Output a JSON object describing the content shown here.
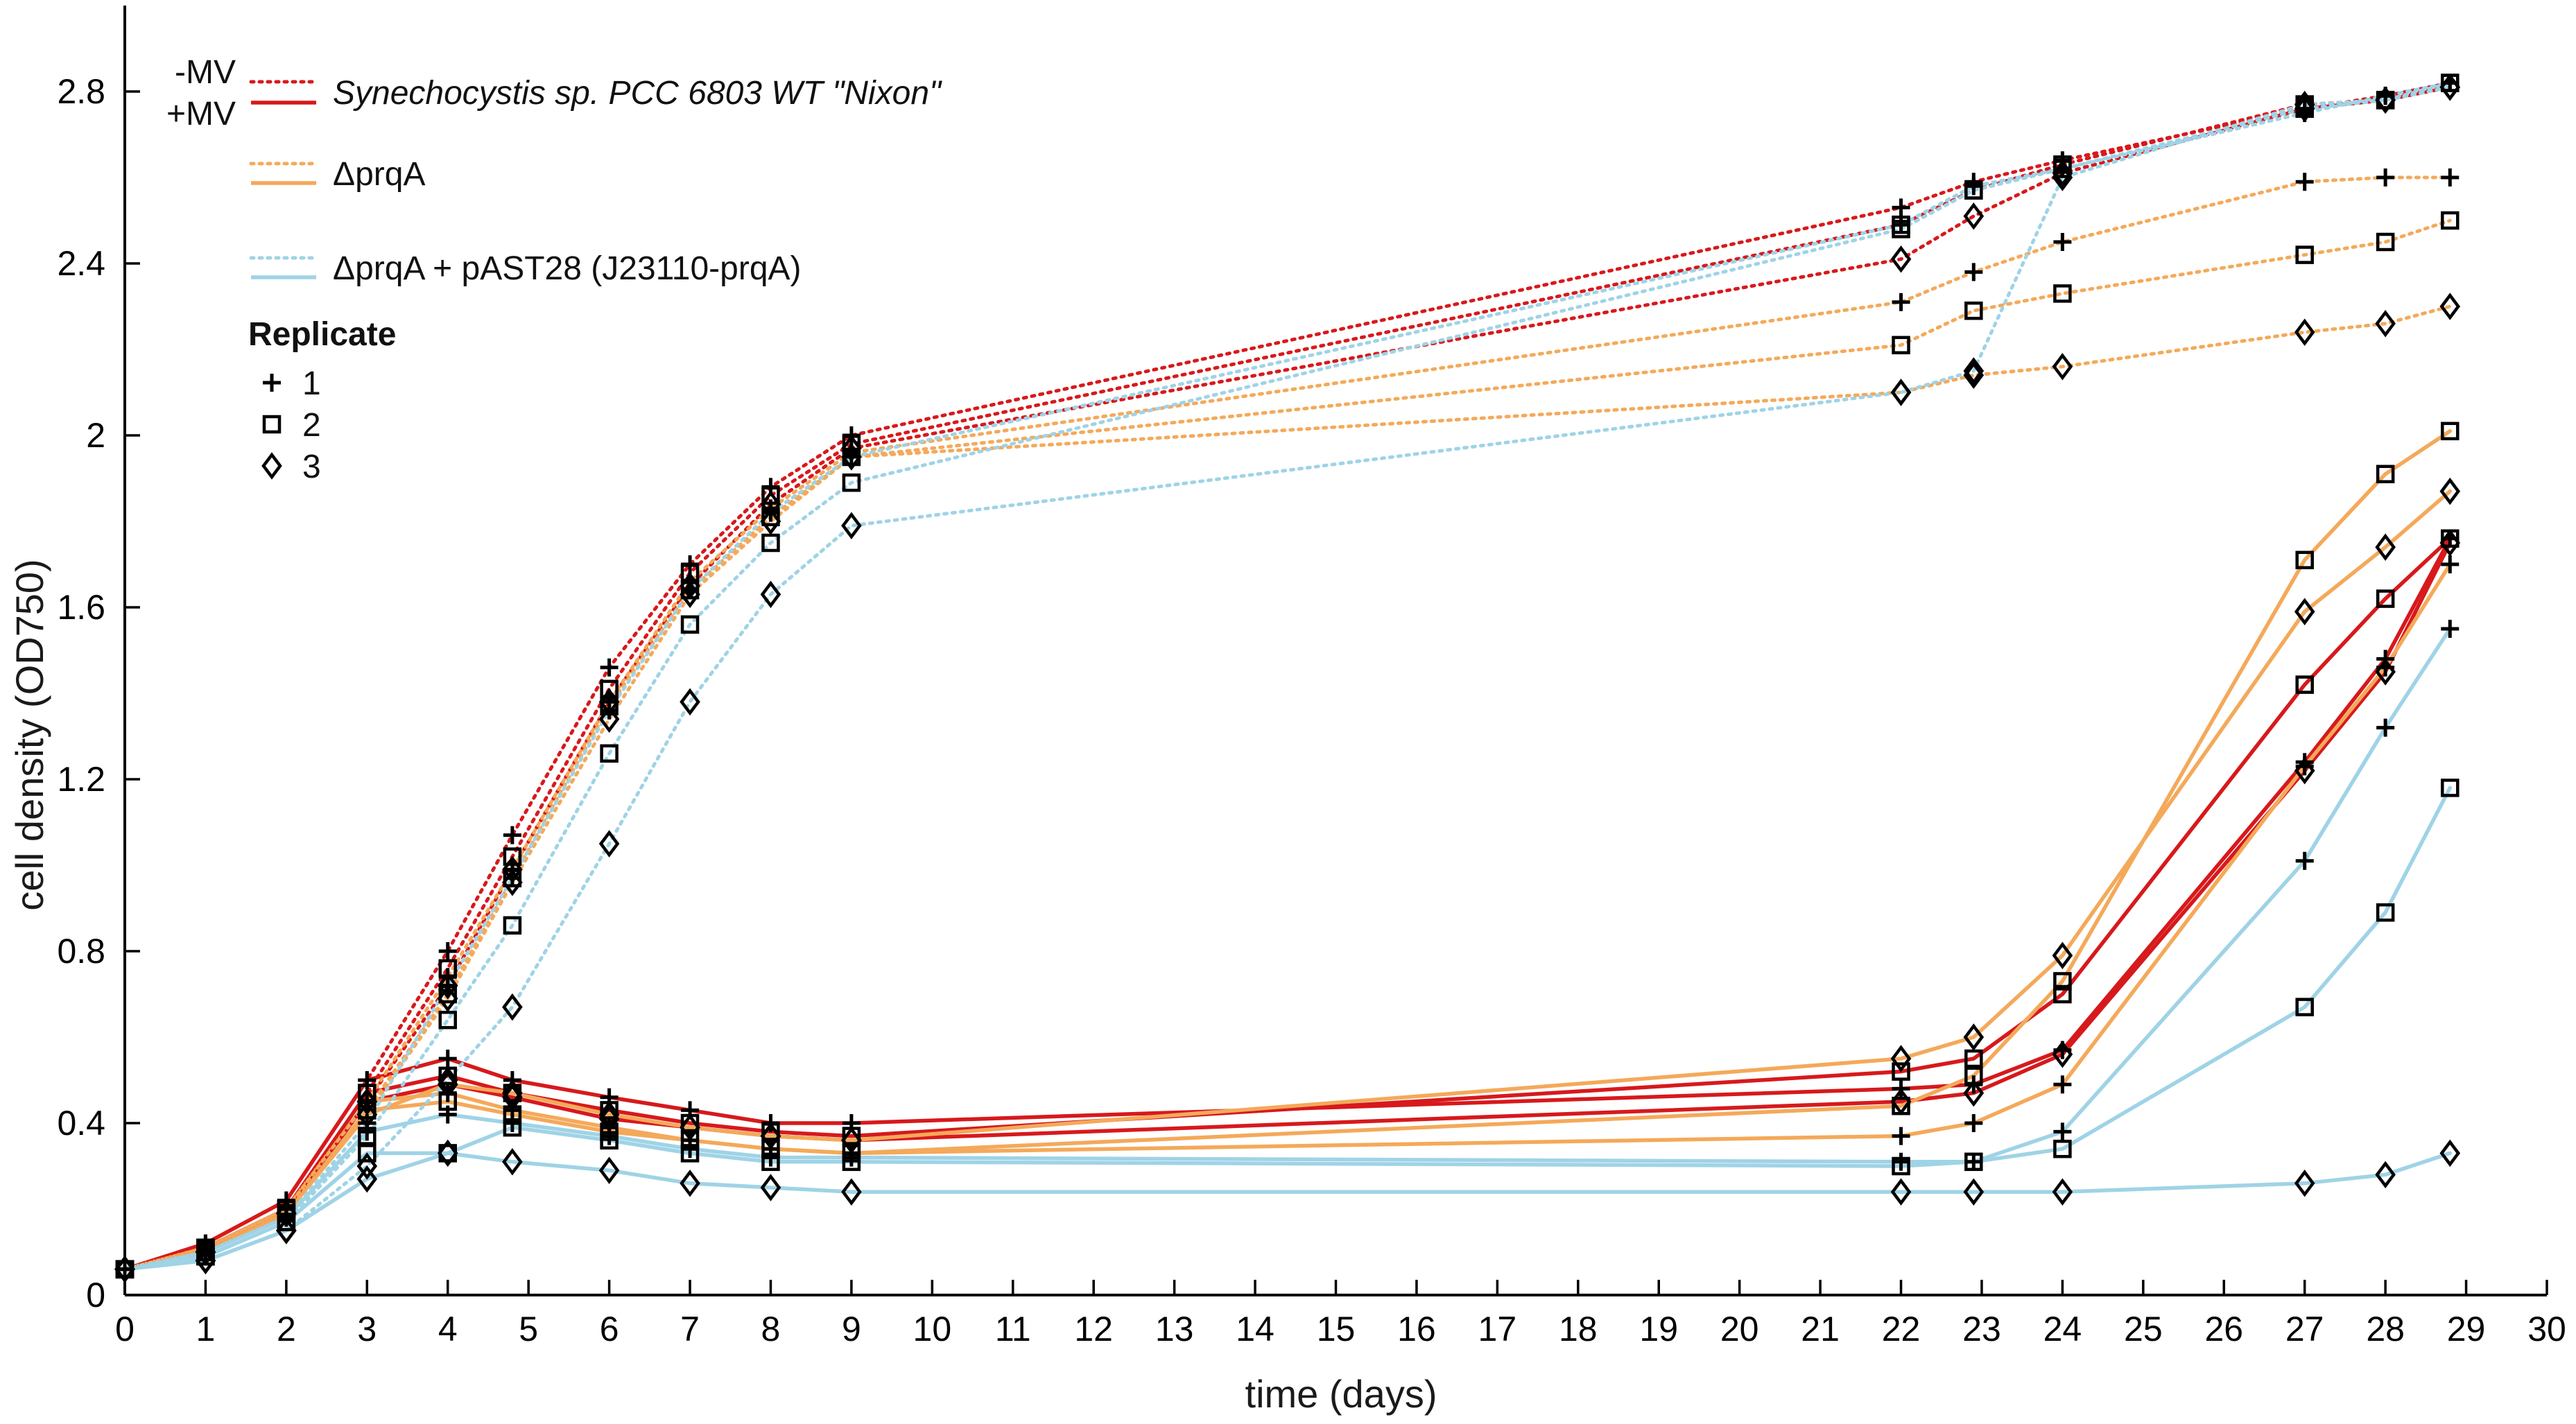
{
  "chart_data": {
    "type": "line",
    "title": "",
    "xlabel": "time (days)",
    "ylabel": "cell density (OD750)",
    "xlim": [
      0,
      30
    ],
    "ylim": [
      0,
      3.0
    ],
    "x_ticks": [
      "0",
      "1",
      "2",
      "3",
      "4",
      "5",
      "6",
      "7",
      "8",
      "9",
      "10",
      "11",
      "12",
      "13",
      "14",
      "15",
      "16",
      "17",
      "18",
      "19",
      "20",
      "21",
      "22",
      "23",
      "24",
      "25",
      "26",
      "27",
      "28",
      "29",
      "30"
    ],
    "y_ticks": [
      {
        "value": 0,
        "label": "0"
      },
      {
        "value": 0.4,
        "label": "0.4"
      },
      {
        "value": 0.8,
        "label": "0.8"
      },
      {
        "value": 1.2,
        "label": "1.2"
      },
      {
        "value": 1.6,
        "label": "1.6"
      },
      {
        "value": 2.0,
        "label": "2"
      },
      {
        "value": 2.4,
        "label": "2.4"
      },
      {
        "value": 2.8,
        "label": "2.8"
      }
    ],
    "grid": false,
    "legend": {
      "placement": "top-left",
      "mv_minus_label": "-MV",
      "mv_plus_label": "+MV",
      "strains": [
        {
          "label": "Synechocystis sp. PCC 6803 WT \"Nixon\"",
          "color": "#d7191c",
          "italic": true
        },
        {
          "label": "ΔprqA",
          "color": "#f4a95a",
          "italic": false
        },
        {
          "label": "ΔprqA + pAST28 (J23110-prqA)",
          "color": "#9fd3e6",
          "italic": false
        }
      ],
      "replicate_title": "Replicate",
      "replicates": [
        {
          "label": "1",
          "marker": "plus"
        },
        {
          "label": "2",
          "marker": "square"
        },
        {
          "label": "3",
          "marker": "diamond"
        }
      ]
    },
    "x": [
      0,
      1,
      2,
      3,
      4,
      4.8,
      6,
      7,
      8,
      9,
      22,
      22.9,
      24,
      27,
      28,
      28.8
    ],
    "series": [
      {
        "strain": "Synechocystis sp. PCC 6803 WT \"Nixon\"",
        "condition": "-MV",
        "replicate": "1",
        "values": [
          0.06,
          0.12,
          0.22,
          0.5,
          0.8,
          1.07,
          1.46,
          1.7,
          1.88,
          2.0,
          2.53,
          2.59,
          2.64,
          2.76,
          2.79,
          2.82
        ]
      },
      {
        "strain": "Synechocystis sp. PCC 6803 WT \"Nixon\"",
        "condition": "-MV",
        "replicate": "2",
        "values": [
          0.06,
          0.11,
          0.2,
          0.47,
          0.76,
          1.02,
          1.41,
          1.68,
          1.86,
          1.98,
          2.49,
          2.57,
          2.63,
          2.77,
          2.78,
          2.82
        ]
      },
      {
        "strain": "Synechocystis sp. PCC 6803 WT \"Nixon\"",
        "condition": "-MV",
        "replicate": "3",
        "values": [
          0.06,
          0.1,
          0.19,
          0.45,
          0.72,
          0.99,
          1.38,
          1.65,
          1.84,
          1.97,
          2.41,
          2.51,
          2.61,
          2.76,
          2.78,
          2.81
        ]
      },
      {
        "strain": "Synechocystis sp. PCC 6803 WT \"Nixon\"",
        "condition": "+MV",
        "replicate": "1",
        "values": [
          0.06,
          0.12,
          0.22,
          0.5,
          0.55,
          0.5,
          0.46,
          0.43,
          0.4,
          0.4,
          0.48,
          0.49,
          0.57,
          1.24,
          1.48,
          1.76
        ]
      },
      {
        "strain": "Synechocystis sp. PCC 6803 WT \"Nixon\"",
        "condition": "+MV",
        "replicate": "2",
        "values": [
          0.06,
          0.11,
          0.2,
          0.47,
          0.51,
          0.47,
          0.43,
          0.4,
          0.38,
          0.37,
          0.52,
          0.55,
          0.7,
          1.42,
          1.62,
          1.76
        ]
      },
      {
        "strain": "Synechocystis sp. PCC 6803 WT \"Nixon\"",
        "condition": "+MV",
        "replicate": "3",
        "values": [
          0.06,
          0.1,
          0.19,
          0.45,
          0.49,
          0.46,
          0.41,
          0.39,
          0.37,
          0.36,
          0.45,
          0.47,
          0.56,
          1.22,
          1.45,
          1.75
        ]
      },
      {
        "strain": "ΔprqA",
        "condition": "-MV",
        "replicate": "1",
        "values": [
          0.06,
          0.11,
          0.2,
          0.45,
          0.74,
          0.99,
          1.38,
          1.66,
          1.83,
          1.96,
          2.31,
          2.38,
          2.45,
          2.59,
          2.6,
          2.6
        ]
      },
      {
        "strain": "ΔprqA",
        "condition": "-MV",
        "replicate": "2",
        "values": [
          0.06,
          0.1,
          0.19,
          0.43,
          0.7,
          0.97,
          1.37,
          1.64,
          1.81,
          1.95,
          2.21,
          2.29,
          2.33,
          2.42,
          2.45,
          2.5
        ]
      },
      {
        "strain": "ΔprqA",
        "condition": "-MV",
        "replicate": "3",
        "values": [
          0.06,
          0.1,
          0.19,
          0.42,
          0.69,
          0.96,
          1.34,
          1.63,
          1.8,
          1.95,
          2.1,
          2.14,
          2.16,
          2.24,
          2.26,
          2.3
        ]
      },
      {
        "strain": "ΔprqA",
        "condition": "+MV",
        "replicate": "1",
        "values": [
          0.06,
          0.11,
          0.2,
          0.45,
          0.47,
          0.43,
          0.39,
          0.36,
          0.34,
          0.33,
          0.37,
          0.4,
          0.49,
          1.23,
          1.46,
          1.7
        ]
      },
      {
        "strain": "ΔprqA",
        "condition": "+MV",
        "replicate": "2",
        "values": [
          0.06,
          0.1,
          0.19,
          0.43,
          0.45,
          0.42,
          0.38,
          0.36,
          0.34,
          0.33,
          0.44,
          0.51,
          0.73,
          1.71,
          1.91,
          2.01
        ]
      },
      {
        "strain": "ΔprqA",
        "condition": "+MV",
        "replicate": "3",
        "values": [
          0.06,
          0.1,
          0.19,
          0.42,
          0.49,
          0.47,
          0.42,
          0.39,
          0.37,
          0.36,
          0.55,
          0.6,
          0.79,
          1.59,
          1.74,
          1.87
        ]
      },
      {
        "strain": "ΔprqA + pAST28 (J23110-prqA)",
        "condition": "-MV",
        "replicate": "1",
        "values": [
          0.06,
          0.1,
          0.18,
          0.4,
          0.72,
          0.97,
          1.36,
          1.64,
          1.82,
          1.95,
          2.49,
          2.58,
          2.62,
          2.75,
          2.79,
          2.82
        ]
      },
      {
        "strain": "ΔprqA + pAST28 (J23110-prqA)",
        "condition": "-MV",
        "replicate": "2",
        "values": [
          0.06,
          0.09,
          0.17,
          0.37,
          0.64,
          0.86,
          1.26,
          1.56,
          1.75,
          1.89,
          2.48,
          2.57,
          2.62,
          2.76,
          2.78,
          2.82
        ]
      },
      {
        "strain": "ΔprqA + pAST28 (J23110-prqA)",
        "condition": "-MV",
        "replicate": "3",
        "values": [
          0.06,
          0.08,
          0.15,
          0.3,
          0.5,
          0.67,
          1.05,
          1.38,
          1.63,
          1.79,
          2.1,
          2.15,
          2.6,
          2.77,
          2.78,
          2.81
        ]
      },
      {
        "strain": "ΔprqA + pAST28 (J23110-prqA)",
        "condition": "+MV",
        "replicate": "1",
        "values": [
          0.06,
          0.1,
          0.18,
          0.38,
          0.42,
          0.4,
          0.37,
          0.34,
          0.32,
          0.32,
          0.31,
          0.31,
          0.38,
          1.01,
          1.32,
          1.55
        ]
      },
      {
        "strain": "ΔprqA + pAST28 (J23110-prqA)",
        "condition": "+MV",
        "replicate": "2",
        "values": [
          0.06,
          0.09,
          0.17,
          0.33,
          0.33,
          0.39,
          0.36,
          0.33,
          0.31,
          0.31,
          0.3,
          0.31,
          0.34,
          0.67,
          0.89,
          1.18
        ]
      },
      {
        "strain": "ΔprqA + pAST28 (J23110-prqA)",
        "condition": "+MV",
        "replicate": "3",
        "values": [
          0.06,
          0.08,
          0.15,
          0.27,
          0.33,
          0.31,
          0.29,
          0.26,
          0.25,
          0.24,
          0.24,
          0.24,
          0.24,
          0.26,
          0.28,
          0.33
        ]
      }
    ]
  }
}
